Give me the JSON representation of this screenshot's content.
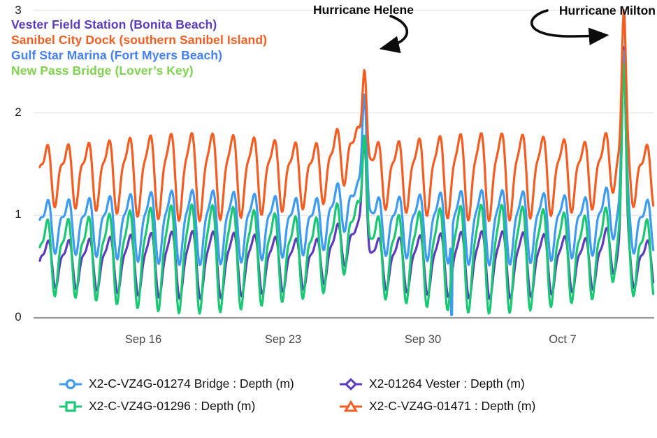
{
  "figure": {
    "background": "#ffffff",
    "grid_color": "#e7e7e7",
    "axis_color": "#9d9d9d"
  },
  "station_labels": [
    {
      "text": "Vester Field Station (Bonita Beach)",
      "color": "#5b3bbf"
    },
    {
      "text": "Sanibel City Dock (southern Sanibel Island)",
      "color": "#f45d22"
    },
    {
      "text": "Gulf Star Marina (Fort Myers Beach)",
      "color": "#4480f4"
    },
    {
      "text": "New Pass Bridge (Lover’s Key)",
      "color": "#7ed34e"
    }
  ],
  "annotations": [
    {
      "label": "Hurricane Helene",
      "t_days": 16.08,
      "pointer": "arrow-to-peak"
    },
    {
      "label": "Hurricane Milton",
      "t_days": 29.06,
      "pointer": "arrow-to-peak"
    }
  ],
  "chart_data": {
    "type": "line",
    "title": "",
    "xlabel": "",
    "ylabel": "Depth (m)",
    "ylim": [
      0,
      3
    ],
    "grid": "horizontal",
    "y_ticks": [
      {
        "label": "3",
        "value": 3
      },
      {
        "label": "2",
        "value": 2
      },
      {
        "label": "1",
        "value": 1
      },
      {
        "label": "0",
        "value": 0
      }
    ],
    "x_ticks": [
      {
        "label": "Sep 16",
        "t_days": 5
      },
      {
        "label": "Sep 23",
        "t_days": 12
      },
      {
        "label": "Sep 30",
        "t_days": 19
      },
      {
        "label": "Oct 7",
        "t_days": 26
      }
    ],
    "t_range_days": [
      -0.18,
      30.55
    ],
    "tide_model": {
      "diurnal_period_days": 1.035,
      "semidiurnal_period_days": 0.5175,
      "spring_neap_period_days": 14.8,
      "spring_neap_strength": 0.22,
      "spring_center_day": 7.5
    },
    "events": {
      "helene_t_days": 16.08,
      "milton_t_days": 29.06,
      "helene_premound_m": 0.22,
      "milton_premound_m": 0.15
    },
    "series": [
      {
        "label": "X2-C-VZ4G-01274 Bridge : Depth (m)",
        "station": "Gulf Star Marina (Fort Myers Beach)",
        "color": "#3d9bf1",
        "marker": "circle",
        "mean_m": 0.92,
        "diurnal_amp_m": 0.27,
        "semidiurnal_amp_m": 0.1,
        "phase_days": 0.12,
        "helene_peak_m": 2.38,
        "milton_peak_m": 2.45,
        "dropout_t_days": 20.44,
        "dropout_value_m": 0
      },
      {
        "label": "X2-C-VZ4G-01296 : Depth (m)",
        "station": "New Pass Bridge (Lover's Key)",
        "color": "#1ac873",
        "marker": "square",
        "mean_m": 0.63,
        "diurnal_amp_m": 0.4,
        "semidiurnal_amp_m": 0.13,
        "phase_days": 0.1,
        "helene_peak_m": 2.12,
        "milton_peak_m": 2.22
      },
      {
        "label": "X2-01264 Vester : Depth (m)",
        "station": "Vester Field Station (Bonita Beach)",
        "color": "#5b3bbf",
        "marker": "diamond",
        "mean_m": 0.55,
        "diurnal_amp_m": 0.25,
        "semidiurnal_amp_m": 0.08,
        "phase_days": 0.14,
        "helene_peak_m": 1.9,
        "milton_peak_m": 2.5
      },
      {
        "label": "X2-C-VZ4G-01471 : Depth (m)",
        "station": "Sanibel City Dock (southern Sanibel Island)",
        "color": "#f45d22",
        "marker": "triangle",
        "mean_m": 1.42,
        "diurnal_amp_m": 0.32,
        "semidiurnal_amp_m": 0.11,
        "phase_days": 0.1,
        "helene_peak_m": 2.68,
        "milton_peak_m": 2.8
      }
    ]
  }
}
